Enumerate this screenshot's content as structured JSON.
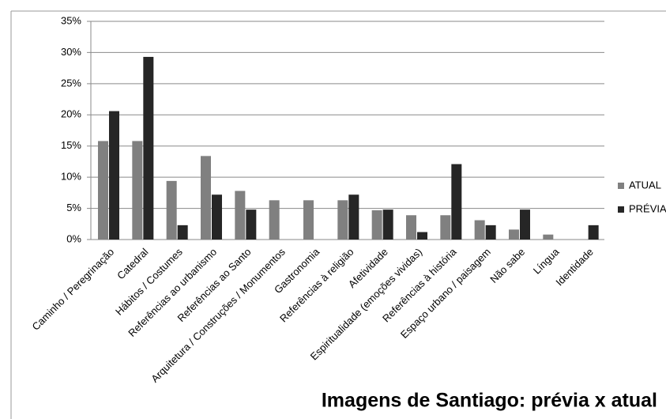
{
  "chart_data": {
    "type": "bar",
    "title": "Imagens de Santiago: prévia x atual",
    "categories": [
      "Caminho / Peregrinação",
      "Catedral",
      "Hábitos / Costumes",
      "Referências ao urbanismo",
      "Referências ao Santo",
      "Arquitetura / Construções / Monumentos",
      "Gastronomia",
      "Referências à religião",
      "Afetividade",
      "Espiritualidade (emoções vividas)",
      "Referências à história",
      "Espaço urbano / paisagem",
      "Não sabe",
      "Língua",
      "Identidade"
    ],
    "series": [
      {
        "name": "ATUAL",
        "color": "#808080",
        "values": [
          15.8,
          15.8,
          9.4,
          13.4,
          7.8,
          6.3,
          6.3,
          6.3,
          4.7,
          3.9,
          3.9,
          3.1,
          1.6,
          0.8,
          0
        ]
      },
      {
        "name": "PRÉVIA",
        "color": "#262626",
        "values": [
          20.6,
          29.3,
          2.3,
          7.2,
          4.8,
          0,
          0,
          7.2,
          4.8,
          1.2,
          12.1,
          2.3,
          4.8,
          0,
          2.3
        ]
      }
    ],
    "ylim": [
      0,
      35
    ],
    "yticks": [
      {
        "value": 0,
        "label": "0%"
      },
      {
        "value": 5,
        "label": "5%"
      },
      {
        "value": 10,
        "label": "10%"
      },
      {
        "value": 15,
        "label": "15%"
      },
      {
        "value": 20,
        "label": "20%"
      },
      {
        "value": 25,
        "label": "25%"
      },
      {
        "value": 30,
        "label": "30%"
      },
      {
        "value": 35,
        "label": "35%"
      }
    ],
    "grid": true,
    "legend": "right"
  }
}
